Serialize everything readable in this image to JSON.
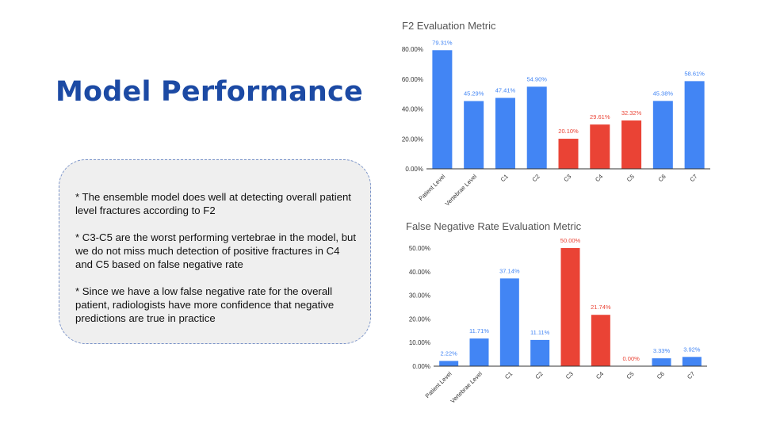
{
  "slide": {
    "title": "Model Performance",
    "notes": [
      "* The ensemble model does well at detecting overall patient level fractures according to F2",
      "* C3-C5 are the worst performing vertebrae in the model, but we do not miss much detection of positive fractures in C4 and C5 based on false negative rate",
      "* Since we have a low false negative rate for the overall patient, radiologists have more confidence that negative predictions are true in practice"
    ]
  },
  "colors": {
    "blue": "#4285f4",
    "red": "#ea4335",
    "axis": "#333333",
    "grid": "#dddddd",
    "title": "#1c4aa4"
  },
  "chart_data": [
    {
      "type": "bar",
      "title": "F2 Evaluation Metric",
      "categories": [
        "Patient Level",
        "Vertebrae Level",
        "C1",
        "C2",
        "C3",
        "C4",
        "C5",
        "C6",
        "C7"
      ],
      "values": [
        79.31,
        45.29,
        47.41,
        54.9,
        20.1,
        29.61,
        32.32,
        45.38,
        58.61
      ],
      "data_labels": [
        "79.31%",
        "45.29%",
        "47.41%",
        "54.90%",
        "20.10%",
        "29.61%",
        "32.32%",
        "45.38%",
        "58.61%"
      ],
      "bar_colors": [
        "blue",
        "blue",
        "blue",
        "blue",
        "red",
        "red",
        "red",
        "blue",
        "blue"
      ],
      "ylim": [
        0,
        80
      ],
      "yticks": [
        "0.00%",
        "20.00%",
        "40.00%",
        "60.00%",
        "80.00%"
      ],
      "grid": false
    },
    {
      "type": "bar",
      "title": "False Negative Rate Evaluation Metric",
      "categories": [
        "Patient Level",
        "Vertebrae Level",
        "C1",
        "C2",
        "C3",
        "C4",
        "C5",
        "C6",
        "C7"
      ],
      "values": [
        2.22,
        11.71,
        37.14,
        11.11,
        50.0,
        21.74,
        0.0,
        3.33,
        3.92
      ],
      "data_labels": [
        "2.22%",
        "11.71%",
        "37.14%",
        "11.11%",
        "50.00%",
        "21.74%",
        "0.00%",
        "3.33%",
        "3.92%"
      ],
      "bar_colors": [
        "blue",
        "blue",
        "blue",
        "blue",
        "red",
        "red",
        "red",
        "blue",
        "blue"
      ],
      "ylim": [
        0,
        50
      ],
      "yticks": [
        "0.00%",
        "10.00%",
        "20.00%",
        "30.00%",
        "40.00%",
        "50.00%"
      ],
      "grid": false
    }
  ]
}
